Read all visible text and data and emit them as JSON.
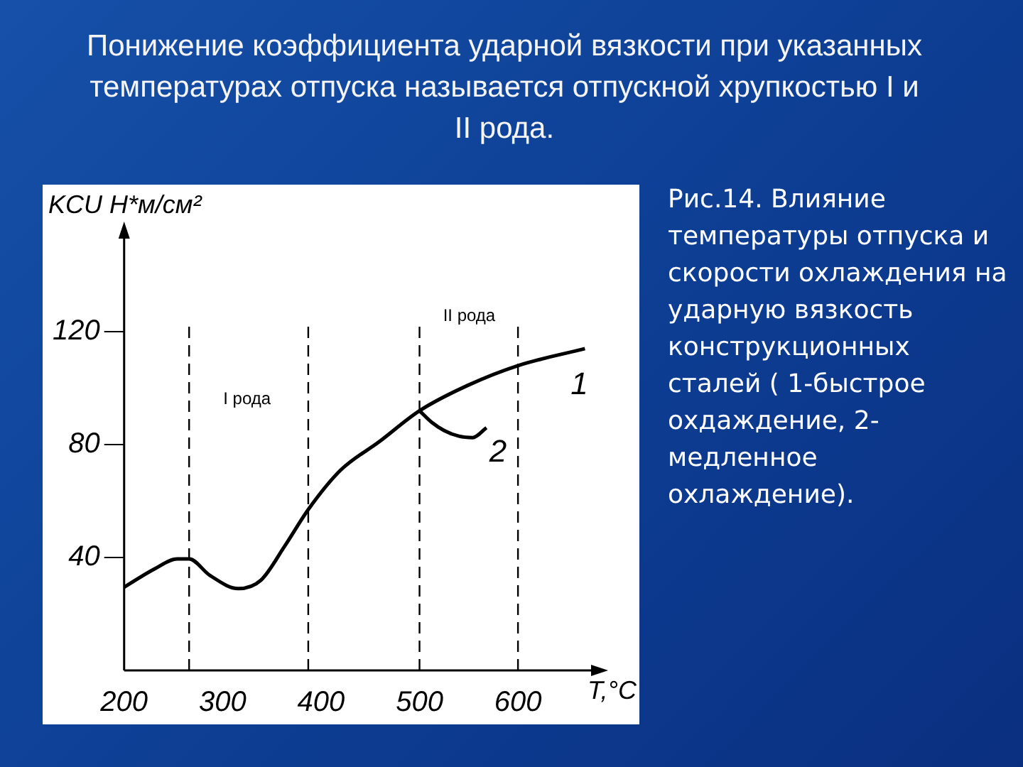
{
  "chart_data": {
    "type": "line",
    "title": "Понижение коэффициента ударной вязкости при указанных температурах отпуска называется отпускной хрупкостью I и II рода.",
    "xlabel": "T,°C",
    "ylabel": "KCU Н*м/см²",
    "series": [
      {
        "name": "1",
        "color": "#000000",
        "x": [
          200,
          231,
          254,
          266,
          287,
          316,
          339,
          363,
          387,
          420,
          459,
          500,
          549,
          600,
          668
        ],
        "values": [
          29.5,
          36,
          39.5,
          39.5,
          33.7,
          29,
          32,
          44,
          57,
          71,
          81,
          92,
          101,
          108,
          114
        ]
      },
      {
        "name": "2",
        "color": "#000000",
        "x": [
          500,
          512,
          525,
          540,
          554,
          568
        ],
        "values": [
          92,
          88,
          85,
          83,
          82.5,
          86
        ]
      }
    ],
    "xlim": [
      200,
      680
    ],
    "xticks": [
      200,
      300,
      400,
      500,
      600
    ],
    "ylim": [
      0,
      155
    ],
    "yticks": [
      40,
      80,
      120
    ],
    "ref_lines": [
      {
        "axis": "x",
        "value": 266,
        "line_style": "dashed"
      },
      {
        "axis": "x",
        "value": 387,
        "line_style": "dashed"
      },
      {
        "axis": "x",
        "value": 500,
        "line_style": "dashed"
      },
      {
        "axis": "x",
        "value": 600,
        "line_style": "dashed"
      }
    ],
    "annotations": [
      "I рода",
      "II рода",
      "Рис.14. Влияние температуры отпуска и скорости охлаждения на ударную вязкость конструкционных сталей ( 1-быстрое охдаждение, 2-медленное охлаждение)."
    ],
    "grid": false,
    "legend": false,
    "marker": "none",
    "line_style": "solid"
  }
}
